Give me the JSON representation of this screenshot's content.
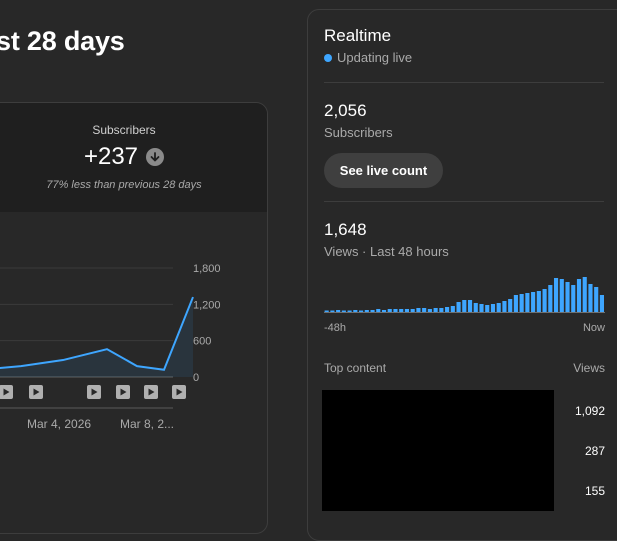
{
  "header": {
    "title": "st 28 days"
  },
  "metric": {
    "label": "Subscribers",
    "value": "+237",
    "compare": "77% less than previous 28 days"
  },
  "chart_data": {
    "type": "line",
    "x_ticks": [
      "Mar 4, 2026",
      "Mar 8, 2..."
    ],
    "y_ticks": [
      "1,800",
      "1,200",
      "600",
      "0"
    ],
    "ylim": [
      0,
      1800
    ],
    "values": [
      120,
      180,
      280,
      460,
      180,
      120,
      1320
    ],
    "color": "#3ea6ff",
    "video_markers": 7
  },
  "realtime": {
    "title": "Realtime",
    "status": "Updating live",
    "subscribers_value": "2,056",
    "subscribers_label": "Subscribers",
    "see_live_label": "See live count",
    "views_value": "1,648",
    "views_label": "Views · Last 48 hours",
    "axis_left": "-48h",
    "axis_right": "Now",
    "hourly_views": [
      1,
      1,
      2,
      1,
      1,
      2,
      1,
      2,
      2,
      3,
      2,
      3,
      3,
      3,
      3,
      3,
      4,
      4,
      3,
      4,
      4,
      5,
      6,
      10,
      12,
      12,
      9,
      8,
      7,
      8,
      9,
      11,
      13,
      17,
      18,
      19,
      20,
      21,
      23,
      27,
      34,
      33,
      30,
      27,
      33,
      35,
      28,
      25,
      17
    ],
    "bar_color": "#3ea6ff",
    "top_content_label": "Top content",
    "views_column_label": "Views",
    "top_content_views": [
      "1,092",
      "287",
      "155"
    ]
  }
}
